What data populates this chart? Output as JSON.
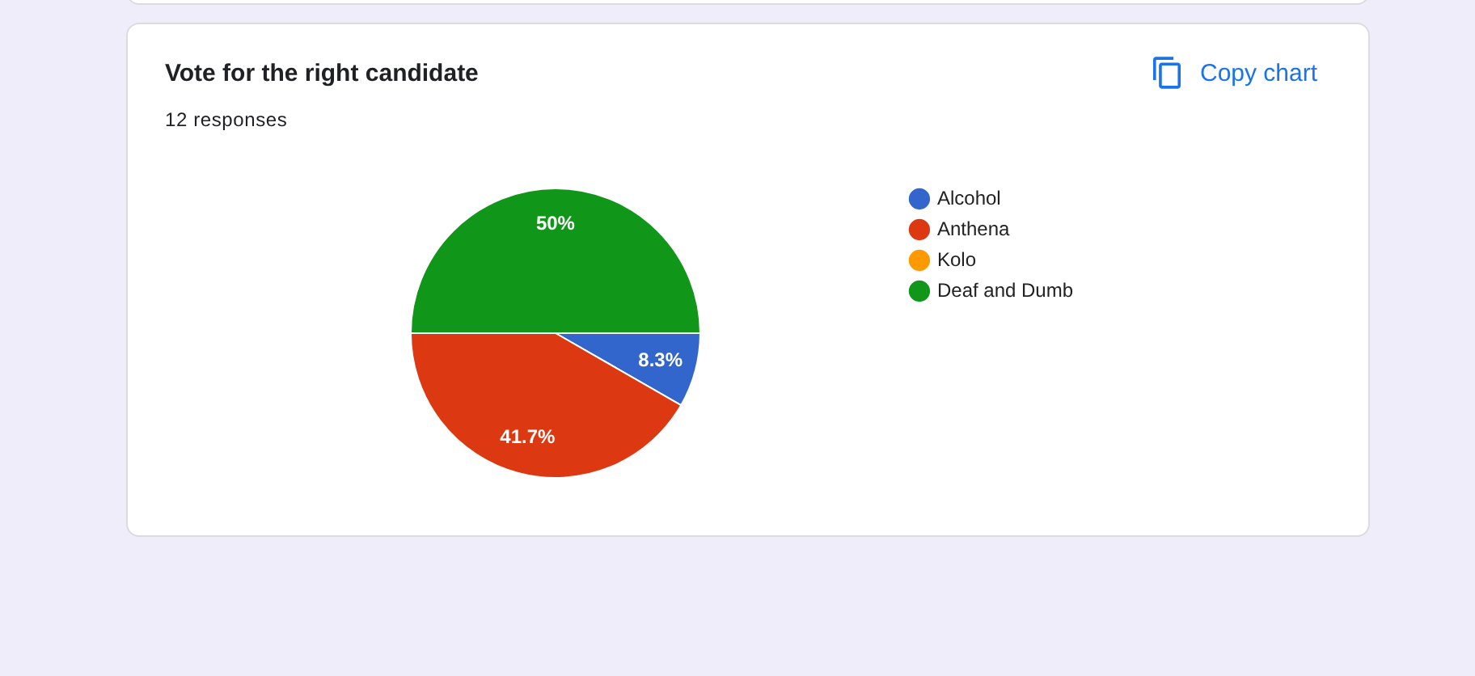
{
  "chart_data": {
    "type": "pie",
    "title": "Vote for the right candidate",
    "subtitle": "12 responses",
    "categories": [
      "Alcohol",
      "Anthena",
      "Kolo",
      "Deaf and Dumb"
    ],
    "values": [
      8.3,
      41.7,
      0,
      50
    ],
    "colors": [
      "#3366cc",
      "#dc3912",
      "#ff9900",
      "#109618"
    ],
    "value_labels": [
      "8.3%",
      "41.7%",
      null,
      "50%"
    ],
    "legend": "right",
    "annotations": [
      "Copy chart"
    ]
  }
}
